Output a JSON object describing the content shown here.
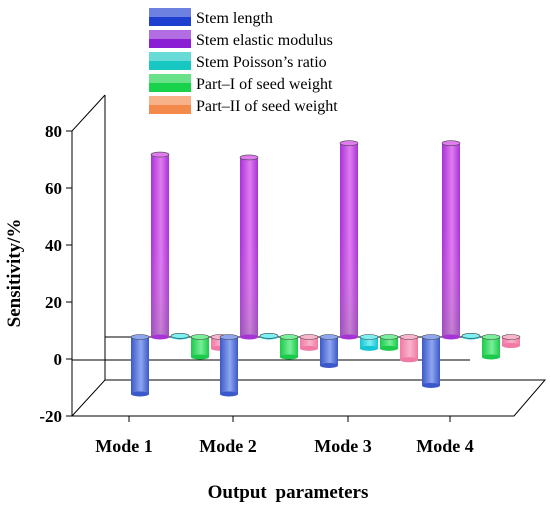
{
  "chart_data": {
    "type": "bar",
    "ylabel": "Sensitivity/%",
    "xlabel": "Output parameters",
    "ylim": [
      -20,
      80
    ],
    "yticks": [
      -20,
      0,
      20,
      40,
      60,
      80
    ],
    "categories": [
      "Mode 1",
      "Mode 2",
      "Mode 3",
      "Mode 4"
    ],
    "series": [
      {
        "name": "Stem length",
        "values": [
          -20,
          -20,
          -10,
          -17
        ]
      },
      {
        "name": "Stem elastic modulus",
        "values": [
          64,
          63,
          68,
          68
        ]
      },
      {
        "name": "Stem Poisson’s ratio",
        "values": [
          0.4,
          0.4,
          -4,
          0.4
        ]
      },
      {
        "name": "Part–I of seed weight",
        "values": [
          -7,
          -7,
          -4,
          -7
        ]
      },
      {
        "name": "Part–II of seed weight",
        "values": [
          -4,
          -4,
          -8,
          -3
        ]
      }
    ],
    "colors": {
      "Stem length": [
        "#3a58c9",
        "#8ea6f0"
      ],
      "Stem elastic modulus": [
        "#a633d6",
        "#e17bf0"
      ],
      "Stem Poisson’s ratio": [
        "#14c5d3",
        "#7ef0f4"
      ],
      "Part–I of seed weight": [
        "#1bc94b",
        "#78ef98"
      ],
      "Part–II of seed weight": [
        "#f07aa5",
        "#f9b3cb"
      ]
    },
    "legend_colors": [
      "#1f3fd0",
      "#8a1fd4",
      "#17c8c2",
      "#17d24a",
      "#f3894a"
    ],
    "legend_position": "top",
    "grid": false
  }
}
